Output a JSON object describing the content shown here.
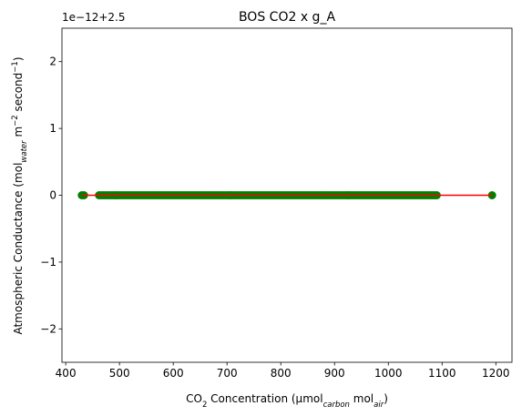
{
  "chart_data": {
    "type": "scatter",
    "title": "BOS CO2 x g_A",
    "offset_label": "1e−12+2.5",
    "xlabel": {
      "parts": [
        {
          "t": "CO"
        },
        {
          "t": "2",
          "sub": true
        },
        {
          "t": " Concentration (µmol"
        },
        {
          "t": "carbon",
          "sub": true,
          "italic": true
        },
        {
          "t": " mol"
        },
        {
          "t": "air",
          "sub": true,
          "italic": true
        },
        {
          "t": ")"
        }
      ]
    },
    "ylabel": {
      "parts": [
        {
          "t": "Atmospheric Conductance (mol"
        },
        {
          "t": "water",
          "sub": true,
          "italic": true
        },
        {
          "t": " m"
        },
        {
          "t": "−2",
          "sup": true
        },
        {
          "t": " second"
        },
        {
          "t": "−1",
          "sup": true
        },
        {
          "t": ")"
        }
      ]
    },
    "xlim": [
      393,
      1230
    ],
    "ylim": [
      -2.5,
      2.5
    ],
    "x_ticks": [
      400,
      500,
      600,
      700,
      800,
      900,
      1000,
      1100,
      1200
    ],
    "x_tick_labels": [
      "400",
      "500",
      "600",
      "700",
      "800",
      "900",
      "1000",
      "1100",
      "1200"
    ],
    "y_ticks": [
      -2,
      -1,
      0,
      1,
      2
    ],
    "y_tick_labels": [
      "−2",
      "−1",
      "0",
      "1",
      "2"
    ],
    "grid": false,
    "points": {
      "color": "#008000",
      "y": 0,
      "dense_ranges": [
        [
          430,
          436
        ],
        [
          462,
          1090
        ]
      ],
      "isolated_x": [
        1193
      ]
    },
    "fit_line": {
      "color": "#ff0000",
      "x": [
        430,
        1193
      ],
      "y": [
        0,
        0
      ]
    }
  }
}
